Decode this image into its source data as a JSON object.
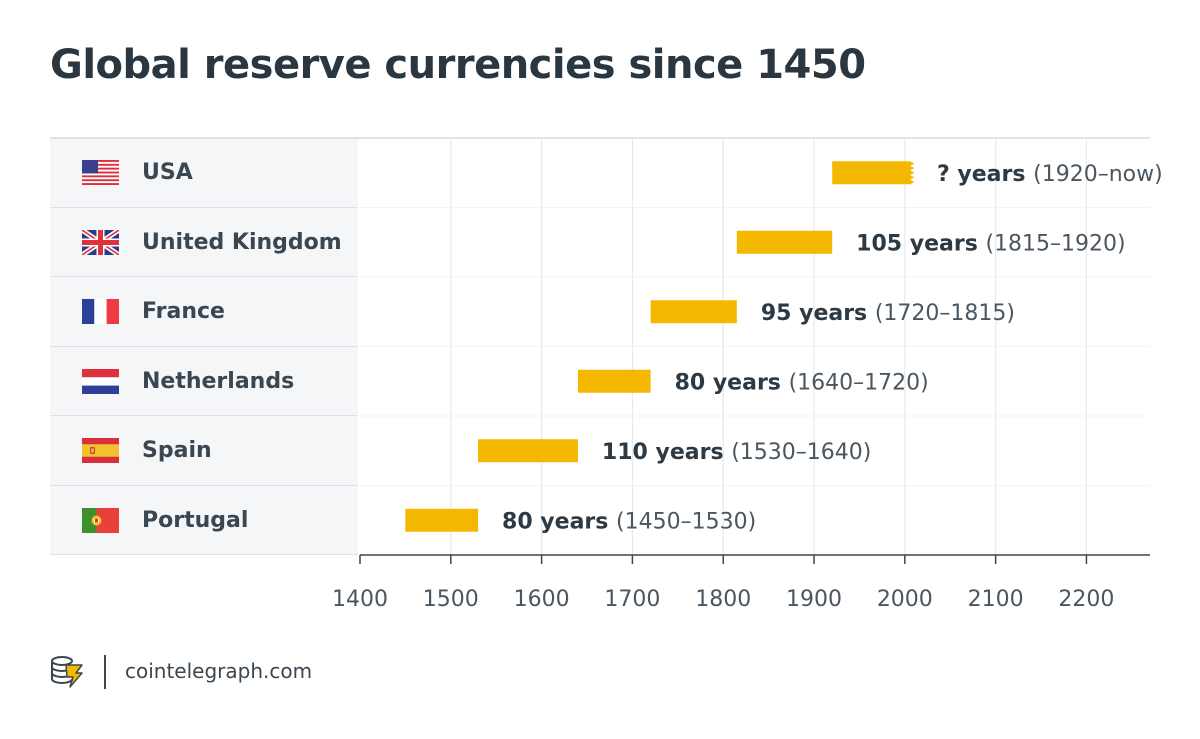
{
  "title": "Global reserve currencies since 1450",
  "footer": {
    "site": "cointelegraph.com",
    "logo_icon": "cointelegraph-logo-icon"
  },
  "colors": {
    "bar": "#f5b800",
    "text": "#2d3a44",
    "grid": "#e6e9ed",
    "panel": "#f4f6f8"
  },
  "chart_data": {
    "type": "bar",
    "orientation": "horizontal-range",
    "title": "Global reserve currencies since 1450",
    "xlim": [
      1400,
      2270
    ],
    "x_ticks": [
      1400,
      1500,
      1600,
      1700,
      1800,
      1900,
      2000,
      2100,
      2200
    ],
    "grid": true,
    "series": [
      {
        "country": "USA",
        "flag_icon": "usa-flag-icon",
        "start": 1920,
        "end": 2009,
        "open_ended": true,
        "duration_label": "? years",
        "range_label": "(1920–now)"
      },
      {
        "country": "United Kingdom",
        "flag_icon": "uk-flag-icon",
        "start": 1815,
        "end": 1920,
        "open_ended": false,
        "duration_label": "105 years",
        "range_label": "(1815–1920)"
      },
      {
        "country": "France",
        "flag_icon": "france-flag-icon",
        "start": 1720,
        "end": 1815,
        "open_ended": false,
        "duration_label": "95 years",
        "range_label": "(1720–1815)"
      },
      {
        "country": "Netherlands",
        "flag_icon": "netherlands-flag-icon",
        "start": 1640,
        "end": 1720,
        "open_ended": false,
        "duration_label": "80 years",
        "range_label": "(1640–1720)"
      },
      {
        "country": "Spain",
        "flag_icon": "spain-flag-icon",
        "start": 1530,
        "end": 1640,
        "open_ended": false,
        "duration_label": "110 years",
        "range_label": "(1530–1640)"
      },
      {
        "country": "Portugal",
        "flag_icon": "portugal-flag-icon",
        "start": 1450,
        "end": 1530,
        "open_ended": false,
        "duration_label": "80 years",
        "range_label": "(1450–1530)"
      }
    ]
  }
}
